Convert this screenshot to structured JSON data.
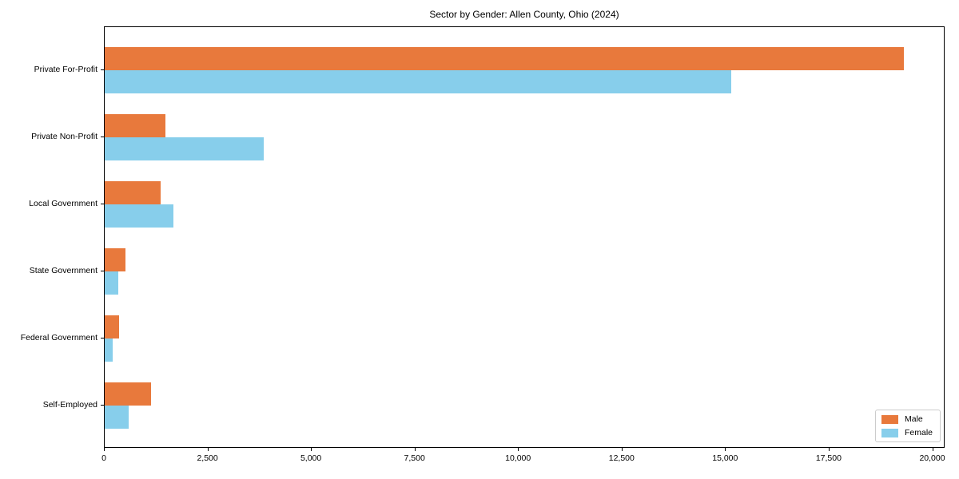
{
  "chart_data": {
    "type": "bar",
    "orientation": "horizontal",
    "title": "Sector by Gender: Allen County, Ohio (2024)",
    "categories": [
      "Private For-Profit",
      "Private Non-Profit",
      "Local Government",
      "State Government",
      "Federal Government",
      "Self-Employed"
    ],
    "series": [
      {
        "name": "Male",
        "color": "#e8793c",
        "values": [
          19300,
          1460,
          1350,
          510,
          340,
          1120
        ]
      },
      {
        "name": "Female",
        "color": "#87ceeb",
        "values": [
          15130,
          3830,
          1660,
          330,
          200,
          570
        ]
      }
    ],
    "xlabel": "",
    "ylabel": "",
    "xlim": [
      0,
      20300
    ],
    "x_ticks": [
      {
        "value": 0,
        "label": "0"
      },
      {
        "value": 2500,
        "label": "2,500"
      },
      {
        "value": 5000,
        "label": "5,000"
      },
      {
        "value": 7500,
        "label": "7,500"
      },
      {
        "value": 10000,
        "label": "10,000"
      },
      {
        "value": 12500,
        "label": "12,500"
      },
      {
        "value": 15000,
        "label": "15,000"
      },
      {
        "value": 17500,
        "label": "17,500"
      },
      {
        "value": 20000,
        "label": "20,000"
      }
    ],
    "grid": false,
    "legend": {
      "position": "lower right",
      "labels": [
        "Male",
        "Female"
      ]
    }
  }
}
